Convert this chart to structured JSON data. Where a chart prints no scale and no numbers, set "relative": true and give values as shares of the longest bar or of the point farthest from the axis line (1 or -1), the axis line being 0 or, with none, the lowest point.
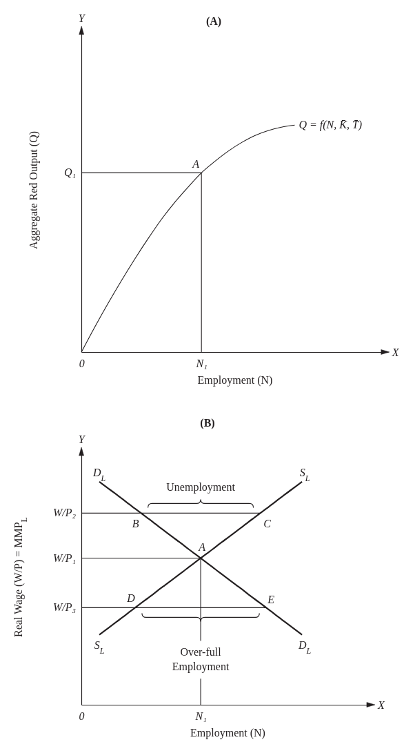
{
  "chart_data": [
    {
      "type": "line",
      "title": "(A)",
      "xlabel": "Employment (N)",
      "ylabel": "Aggregate Red Output (Q)",
      "relative": true,
      "categories": [
        "0",
        null,
        null,
        null,
        null,
        null,
        null,
        null,
        null,
        "N₁",
        null,
        null,
        null,
        null,
        null,
        null,
        null,
        null,
        null,
        null,
        null,
        null,
        null,
        null
      ],
      "series": [
        {
          "color": "#231f20",
          "values": [
            0,
            0.11,
            0.215,
            0.315,
            0.41,
            0.5,
            0.585,
            0.66,
            0.727,
            0.79,
            0.84,
            0.885,
            0.923,
            0.954,
            0.976,
            0.991,
            1,
            null,
            null,
            null,
            null,
            null,
            null,
            null
          ]
        }
      ],
      "ref_lines": [
        {
          "axis": "y",
          "value": 0.79
        },
        {
          "axis": "x",
          "value": "N₁"
        }
      ],
      "annotations": [
        "Y",
        "X",
        {
          "text": "A",
          "x": "N₁",
          "y": 0.79
        },
        {
          "text": "Q₁",
          "x": "0",
          "y": 0.79
        },
        "Q = f(N, K̄, T̄)"
      ]
    },
    {
      "type": "line",
      "title": "(B)",
      "xlabel": "Employment (N)",
      "ylabel": "Real Wage (W/P) = MMP$_{L}$",
      "relative": true,
      "categories": [
        "0",
        null,
        null,
        null,
        null,
        null,
        null,
        null,
        null,
        null,
        null,
        null,
        null,
        null,
        null,
        null,
        null,
        null,
        null,
        null,
        "N₁",
        null,
        null,
        null,
        null,
        null,
        null,
        null,
        null,
        null,
        null,
        null,
        null,
        null,
        null,
        null,
        null,
        null,
        null,
        null,
        null,
        null,
        null,
        null,
        null,
        null,
        null,
        null,
        null,
        null
      ],
      "series": [
        {
          "name": "D$_{L}$",
          "color": "#231f20",
          "values": [
            null,
            null,
            null,
            1.0,
            0.98,
            0.96,
            0.94,
            0.92,
            0.899,
            0.879,
            0.859,
            0.839,
            0.819,
            0.798,
            0.778,
            0.758,
            0.738,
            0.718,
            0.697,
            0.677,
            0.657,
            0.637,
            0.617,
            0.596,
            0.576,
            0.556,
            0.536,
            0.516,
            0.495,
            0.475,
            0.455,
            0.435,
            0.415,
            0.394,
            0.374,
            0.354,
            0.334,
            0.314,
            null,
            null,
            null,
            null,
            null,
            null,
            null,
            null,
            null,
            null,
            null,
            null
          ]
        },
        {
          "name": "S$_{L}$",
          "color": "#231f20",
          "values": [
            null,
            null,
            null,
            0.314,
            0.334,
            0.354,
            0.374,
            0.394,
            0.415,
            0.435,
            0.455,
            0.475,
            0.495,
            0.516,
            0.536,
            0.556,
            0.576,
            0.596,
            0.617,
            0.637,
            0.657,
            0.677,
            0.697,
            0.718,
            0.738,
            0.758,
            0.778,
            0.798,
            0.819,
            0.839,
            0.859,
            0.879,
            0.899,
            0.92,
            0.94,
            0.96,
            0.98,
            1.0,
            null,
            null,
            null,
            null,
            null,
            null,
            null,
            null,
            null,
            null,
            null,
            null
          ]
        }
      ],
      "ref_lines": [
        {
          "axis": "y",
          "value": 0.859
        },
        {
          "axis": "y",
          "value": 0.657
        },
        {
          "axis": "y",
          "value": 0.435
        },
        {
          "axis": "x",
          "value": "N₁"
        }
      ],
      "annotations": [
        "Y",
        "X",
        {
          "text": "A",
          "x": "N₁",
          "y": 0.657
        },
        {
          "text": "B",
          "y": 0.859
        },
        {
          "text": "C",
          "y": 0.859
        },
        {
          "text": "D",
          "y": 0.435
        },
        {
          "text": "E",
          "y": 0.435
        },
        {
          "text": "W/P₂",
          "x": "0",
          "y": 0.859
        },
        {
          "text": "W/P₁",
          "x": "0",
          "y": 0.657
        },
        {
          "text": "W/P₃",
          "x": "0",
          "y": 0.435
        },
        "Unemployment",
        "Over-full\nEmployment",
        "D$_{L}$",
        "S$_{L}$"
      ]
    }
  ]
}
